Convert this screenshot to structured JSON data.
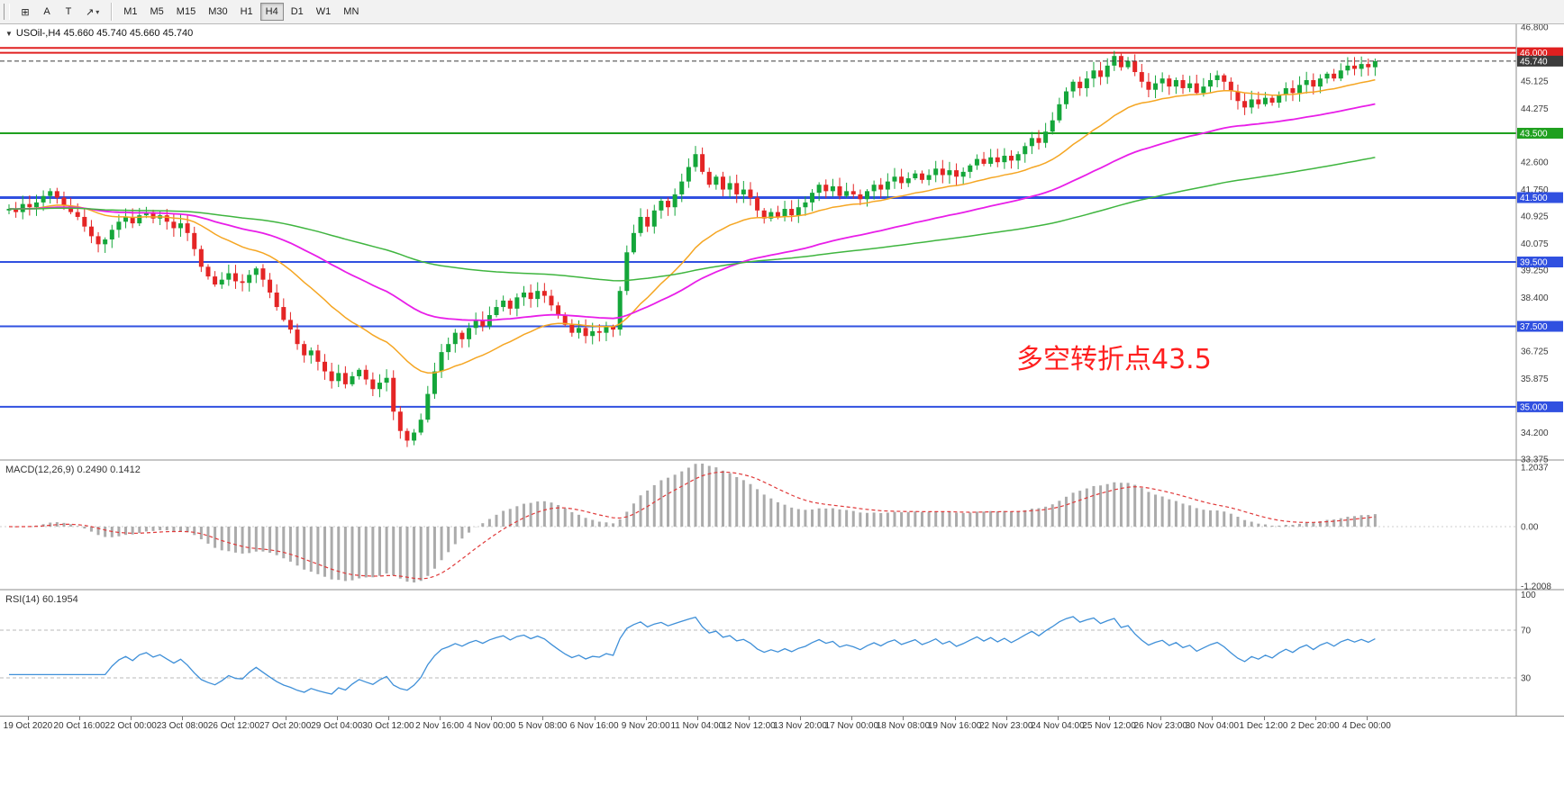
{
  "toolbar": {
    "tools": [
      {
        "name": "grid-tool",
        "glyph": "⊞"
      },
      {
        "name": "label-tool",
        "glyph": "A"
      },
      {
        "name": "text-tool",
        "glyph": "T"
      },
      {
        "name": "arrow-tool",
        "glyph": "↗",
        "caret": "▾"
      }
    ],
    "timeframes": [
      "M1",
      "M5",
      "M15",
      "M30",
      "H1",
      "H4",
      "D1",
      "W1",
      "MN"
    ],
    "active_timeframe": "H4"
  },
  "chart": {
    "title_line": "USOil-,H4 45.660 45.740 45.660 45.740",
    "dropdown_icon": "▼",
    "annotation": {
      "text": "多空转折点43.5",
      "color": "#FF1F1F"
    }
  },
  "macd": {
    "label": "MACD(12,26,9) 0.2490 0.1412",
    "scale": [
      "1.2037",
      "0.00",
      "-1.2008"
    ]
  },
  "rsi": {
    "label": "RSI(14) 60.1954",
    "scale": [
      "100",
      "70",
      "30"
    ],
    "levels": [
      70,
      30
    ]
  },
  "time_axis": {
    "labels": [
      "19 Oct 2020",
      "20 Oct 16:00",
      "22 Oct 00:00",
      "23 Oct 08:00",
      "26 Oct 12:00",
      "27 Oct 20:00",
      "29 Oct 04:00",
      "30 Oct 12:00",
      "2 Nov 16:00",
      "4 Nov 00:00",
      "5 Nov 08:00",
      "6 Nov 16:00",
      "9 Nov 20:00",
      "11 Nov 04:00",
      "12 Nov 12:00",
      "13 Nov 20:00",
      "17 Nov 00:00",
      "18 Nov 08:00",
      "19 Nov 16:00",
      "22 Nov 23:00",
      "24 Nov 04:00",
      "25 Nov 12:00",
      "26 Nov 23:00",
      "30 Nov 04:00",
      "1 Dec 12:00",
      "2 Dec 20:00",
      "4 Dec 00:00"
    ]
  },
  "chart_data": {
    "type": "candlestick",
    "symbol": "USOil",
    "timeframe": "H4",
    "last_ohlc": {
      "open": 45.66,
      "high": 45.74,
      "low": 45.66,
      "close": 45.74
    },
    "current_price": 45.74,
    "price_axis": {
      "max": 46.8,
      "min": 33.375,
      "visible_ticks": [
        "46.800",
        "45.125",
        "44.275",
        "42.600",
        "41.750",
        "40.925",
        "40.075",
        "39.250",
        "38.400",
        "36.725",
        "35.875",
        "34.200",
        "33.375"
      ]
    },
    "first_open": 41.1,
    "closes": [
      41.15,
      41.05,
      41.3,
      41.2,
      41.35,
      41.55,
      41.7,
      41.5,
      41.25,
      41.05,
      40.9,
      40.6,
      40.3,
      40.05,
      40.2,
      40.5,
      40.75,
      40.9,
      40.7,
      40.95,
      41.05,
      40.85,
      40.95,
      40.75,
      40.55,
      40.7,
      40.4,
      39.9,
      39.35,
      39.05,
      38.8,
      38.95,
      39.15,
      38.9,
      38.85,
      39.1,
      39.3,
      38.95,
      38.55,
      38.1,
      37.7,
      37.4,
      36.95,
      36.6,
      36.75,
      36.4,
      36.1,
      35.8,
      36.05,
      35.7,
      35.95,
      36.15,
      35.85,
      35.55,
      35.75,
      35.9,
      34.85,
      34.25,
      33.95,
      34.2,
      34.6,
      35.4,
      36.1,
      36.7,
      36.95,
      37.3,
      37.1,
      37.45,
      37.7,
      37.5,
      37.85,
      38.1,
      38.3,
      38.05,
      38.4,
      38.55,
      38.35,
      38.6,
      38.45,
      38.15,
      37.85,
      37.55,
      37.3,
      37.45,
      37.2,
      37.35,
      37.3,
      37.5,
      37.4,
      38.6,
      39.8,
      40.4,
      40.9,
      40.6,
      41.1,
      41.4,
      41.2,
      41.6,
      42.0,
      42.45,
      42.85,
      42.3,
      41.9,
      42.15,
      41.75,
      41.95,
      41.6,
      41.75,
      41.5,
      41.1,
      40.85,
      41.05,
      40.9,
      41.15,
      40.95,
      41.2,
      41.35,
      41.65,
      41.9,
      41.7,
      41.85,
      41.55,
      41.7,
      41.6,
      41.45,
      41.7,
      41.9,
      41.75,
      42.0,
      42.15,
      41.95,
      42.1,
      42.25,
      42.05,
      42.2,
      42.4,
      42.2,
      42.35,
      42.15,
      42.3,
      42.5,
      42.7,
      42.55,
      42.75,
      42.6,
      42.8,
      42.65,
      42.85,
      43.1,
      43.35,
      43.2,
      43.55,
      43.9,
      44.4,
      44.8,
      45.1,
      44.9,
      45.2,
      45.45,
      45.25,
      45.6,
      45.9,
      45.55,
      45.75,
      45.4,
      45.1,
      44.85,
      45.05,
      45.2,
      44.95,
      45.15,
      44.9,
      45.05,
      44.75,
      44.95,
      45.15,
      45.3,
      45.1,
      44.8,
      44.5,
      44.3,
      44.55,
      44.4,
      44.6,
      44.45,
      44.7,
      44.9,
      44.75,
      45.0,
      45.15,
      44.95,
      45.2,
      45.35,
      45.2,
      45.45,
      45.6,
      45.5,
      45.65,
      45.55,
      45.74
    ],
    "levels": [
      {
        "price": 46.15,
        "color": "#E02020",
        "width": 2
      },
      {
        "price": 46.0,
        "color": "#E02020",
        "width": 2,
        "badge": "46.000"
      },
      {
        "price": 43.5,
        "color": "#1FA01F",
        "width": 2,
        "badge": "43.500"
      },
      {
        "price": 41.5,
        "color": "#3050E0",
        "width": 3,
        "badge": "41.500"
      },
      {
        "price": 39.5,
        "color": "#3050E0",
        "width": 2,
        "badge": "39.500"
      },
      {
        "price": 37.5,
        "color": "#3050E0",
        "width": 2,
        "badge": "37.500"
      },
      {
        "price": 35.0,
        "color": "#3050E0",
        "width": 2,
        "badge": "35.000"
      }
    ],
    "price_badge": {
      "text": "45.740",
      "color": "#3C3C3C"
    },
    "moving_averages": [
      {
        "name": "fast",
        "period": 24,
        "color": "#F5A623"
      },
      {
        "name": "medium",
        "period": 60,
        "color": "#E81EE8"
      },
      {
        "name": "slow",
        "period": 150,
        "color": "#3FB53F"
      }
    ],
    "indicators": {
      "macd": {
        "name": "MACD",
        "params": [
          12,
          26,
          9
        ],
        "current": [
          0.249,
          0.1412
        ],
        "scale": [
          1.2037,
          0.0,
          -1.2008
        ]
      },
      "rsi": {
        "name": "RSI",
        "params": [
          14
        ],
        "current": 60.1954,
        "levels": [
          70,
          30
        ],
        "scale": [
          100,
          70,
          30
        ]
      }
    },
    "colors": {
      "bull": "#14A63A",
      "bear": "#E42525",
      "macd_histogram": "#ABABAB",
      "macd_signal": "#E03A3A",
      "rsi_line": "#3E8FD8"
    }
  }
}
